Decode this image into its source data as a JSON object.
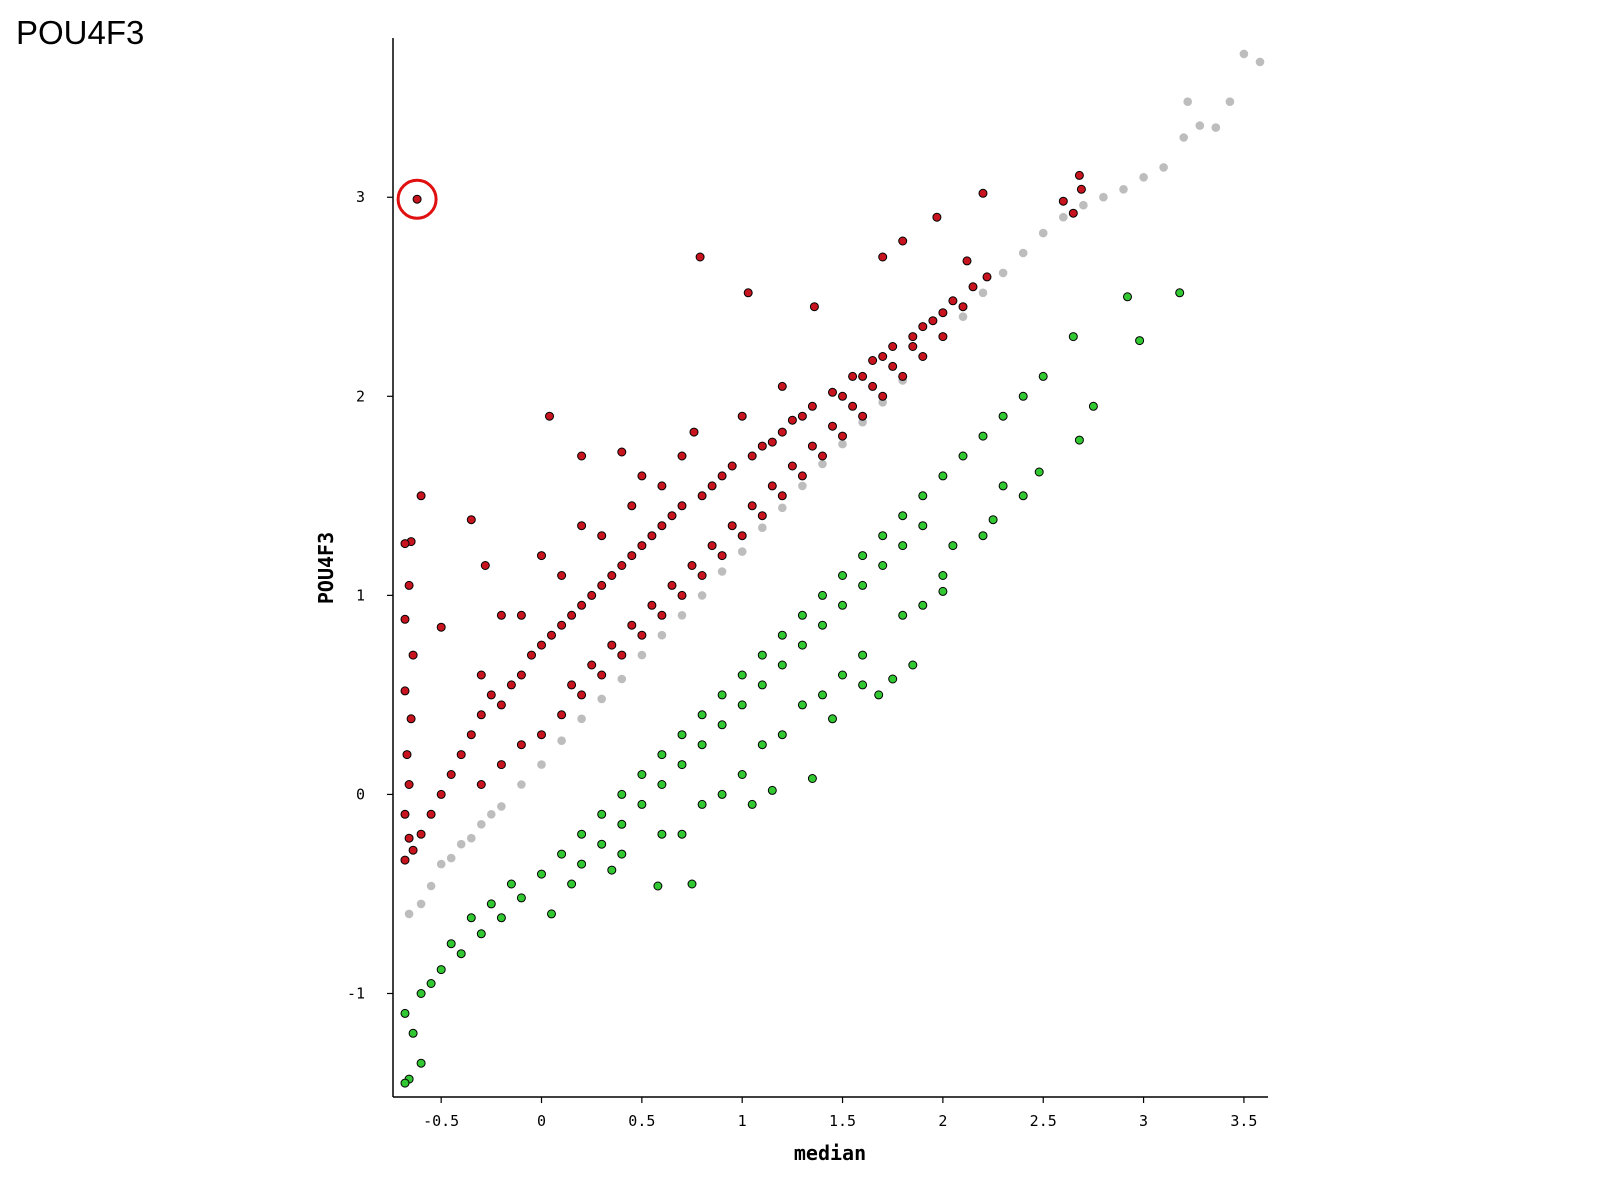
{
  "slide_title": "POU4F3",
  "chart_data": {
    "type": "scatter",
    "title": "",
    "xlabel": "median",
    "ylabel": "POU4F3",
    "xlim": [
      -0.74,
      3.62
    ],
    "ylim": [
      -1.52,
      3.8
    ],
    "xticks": [
      -0.5,
      0,
      0.5,
      1,
      1.5,
      2,
      2.5,
      3,
      3.5
    ],
    "xtick_labels": [
      "-0.5",
      "0",
      "0.5",
      "1",
      "1.5",
      "2",
      "2.5",
      "3",
      "3.5"
    ],
    "yticks": [
      -1,
      0,
      1,
      2,
      3
    ],
    "ytick_labels": [
      "-1",
      "0",
      "1",
      "2",
      "3"
    ],
    "grid": false,
    "series": [
      {
        "color": "#bdbdbd",
        "points": [
          [
            -0.66,
            -0.6
          ],
          [
            -0.6,
            -0.55
          ],
          [
            -0.55,
            -0.46
          ],
          [
            -0.5,
            -0.35
          ],
          [
            -0.45,
            -0.32
          ],
          [
            -0.4,
            -0.25
          ],
          [
            -0.35,
            -0.22
          ],
          [
            -0.3,
            -0.15
          ],
          [
            -0.25,
            -0.1
          ],
          [
            -0.2,
            -0.06
          ],
          [
            -0.1,
            0.05
          ],
          [
            0,
            0.15
          ],
          [
            0.1,
            0.27
          ],
          [
            0.2,
            0.38
          ],
          [
            0.3,
            0.48
          ],
          [
            0.4,
            0.58
          ],
          [
            0.5,
            0.7
          ],
          [
            0.6,
            0.8
          ],
          [
            0.7,
            0.9
          ],
          [
            0.8,
            1.0
          ],
          [
            0.9,
            1.12
          ],
          [
            1.0,
            1.22
          ],
          [
            1.1,
            1.34
          ],
          [
            1.2,
            1.44
          ],
          [
            1.3,
            1.55
          ],
          [
            1.4,
            1.66
          ],
          [
            1.5,
            1.76
          ],
          [
            1.6,
            1.87
          ],
          [
            1.7,
            1.97
          ],
          [
            1.8,
            2.08
          ],
          [
            1.9,
            2.2
          ],
          [
            2.0,
            2.3
          ],
          [
            2.1,
            2.4
          ],
          [
            2.2,
            2.52
          ],
          [
            2.3,
            2.62
          ],
          [
            2.4,
            2.72
          ],
          [
            2.5,
            2.82
          ],
          [
            2.6,
            2.9
          ],
          [
            2.7,
            2.96
          ],
          [
            2.8,
            3.0
          ],
          [
            2.9,
            3.04
          ],
          [
            3.0,
            3.1
          ],
          [
            3.1,
            3.15
          ],
          [
            3.2,
            3.3
          ],
          [
            3.28,
            3.36
          ],
          [
            3.36,
            3.35
          ],
          [
            3.5,
            3.72
          ],
          [
            3.58,
            3.68
          ],
          [
            3.22,
            3.48
          ],
          [
            3.43,
            3.48
          ]
        ]
      },
      {
        "color": "#c8141e",
        "points": [
          [
            -0.62,
            2.99
          ],
          [
            0.79,
            2.7
          ],
          [
            1.03,
            2.52
          ],
          [
            1.36,
            2.45
          ],
          [
            1.8,
            2.78
          ],
          [
            2.2,
            3.02
          ],
          [
            2.68,
            3.11
          ],
          [
            2.69,
            3.04
          ],
          [
            2.6,
            2.98
          ],
          [
            2.65,
            2.92
          ],
          [
            1.97,
            2.9
          ],
          [
            1.7,
            2.7
          ],
          [
            2.12,
            2.68
          ],
          [
            2.22,
            2.6
          ],
          [
            0.04,
            1.9
          ],
          [
            0.76,
            1.82
          ],
          [
            -0.6,
            1.5
          ],
          [
            -0.65,
            1.27
          ],
          [
            -0.35,
            1.38
          ],
          [
            -0.28,
            1.15
          ],
          [
            -0.5,
            0.84
          ],
          [
            -0.3,
            0.6
          ],
          [
            0.2,
            1.7
          ],
          [
            0.4,
            1.72
          ],
          [
            0.5,
            1.6
          ],
          [
            0.6,
            1.55
          ],
          [
            0.9,
            1.6
          ],
          [
            1.15,
            1.77
          ],
          [
            1.3,
            1.9
          ],
          [
            1.5,
            2.0
          ],
          [
            1.6,
            2.1
          ],
          [
            1.7,
            2.2
          ],
          [
            1.85,
            2.3
          ],
          [
            2.0,
            2.42
          ],
          [
            2.1,
            2.45
          ],
          [
            -0.68,
            1.26
          ],
          [
            -0.66,
            1.05
          ],
          [
            -0.68,
            0.88
          ],
          [
            -0.64,
            0.7
          ],
          [
            -0.68,
            0.52
          ],
          [
            -0.65,
            0.38
          ],
          [
            -0.67,
            0.2
          ],
          [
            -0.66,
            0.05
          ],
          [
            -0.68,
            -0.1
          ],
          [
            -0.66,
            -0.22
          ],
          [
            -0.68,
            -0.33
          ],
          [
            -0.64,
            -0.28
          ],
          [
            -0.6,
            -0.2
          ],
          [
            -0.55,
            -0.1
          ],
          [
            -0.5,
            0.0
          ],
          [
            -0.45,
            0.1
          ],
          [
            -0.4,
            0.2
          ],
          [
            -0.35,
            0.3
          ],
          [
            -0.3,
            0.4
          ],
          [
            -0.25,
            0.5
          ],
          [
            -0.2,
            0.45
          ],
          [
            -0.15,
            0.55
          ],
          [
            -0.1,
            0.6
          ],
          [
            -0.05,
            0.7
          ],
          [
            0.0,
            0.75
          ],
          [
            0.05,
            0.8
          ],
          [
            0.1,
            0.85
          ],
          [
            0.15,
            0.9
          ],
          [
            0.2,
            0.95
          ],
          [
            0.25,
            1.0
          ],
          [
            0.3,
            1.05
          ],
          [
            0.35,
            1.1
          ],
          [
            0.4,
            1.15
          ],
          [
            0.45,
            1.2
          ],
          [
            0.5,
            1.25
          ],
          [
            0.55,
            1.3
          ],
          [
            0.6,
            1.35
          ],
          [
            0.65,
            1.4
          ],
          [
            0.7,
            1.45
          ],
          [
            0.8,
            1.5
          ],
          [
            0.85,
            1.55
          ],
          [
            0.95,
            1.65
          ],
          [
            1.05,
            1.7
          ],
          [
            1.1,
            1.75
          ],
          [
            1.2,
            1.82
          ],
          [
            1.25,
            1.88
          ],
          [
            1.35,
            1.95
          ],
          [
            1.45,
            2.02
          ],
          [
            1.55,
            2.1
          ],
          [
            1.65,
            2.18
          ],
          [
            1.75,
            2.25
          ],
          [
            1.9,
            2.35
          ],
          [
            2.05,
            2.48
          ],
          [
            2.15,
            2.55
          ],
          [
            0.0,
            0.3
          ],
          [
            0.1,
            0.4
          ],
          [
            0.2,
            0.5
          ],
          [
            0.3,
            0.6
          ],
          [
            0.4,
            0.7
          ],
          [
            0.5,
            0.8
          ],
          [
            0.6,
            0.9
          ],
          [
            0.7,
            1.0
          ],
          [
            0.8,
            1.1
          ],
          [
            0.9,
            1.2
          ],
          [
            1.0,
            1.3
          ],
          [
            1.1,
            1.4
          ],
          [
            1.2,
            1.5
          ],
          [
            1.3,
            1.6
          ],
          [
            1.4,
            1.7
          ],
          [
            1.5,
            1.8
          ],
          [
            1.6,
            1.9
          ],
          [
            1.7,
            2.0
          ],
          [
            1.8,
            2.1
          ],
          [
            1.9,
            2.2
          ],
          [
            2.0,
            2.3
          ],
          [
            -0.2,
            0.15
          ],
          [
            -0.3,
            0.05
          ],
          [
            -0.1,
            0.25
          ],
          [
            0.15,
            0.55
          ],
          [
            0.25,
            0.65
          ],
          [
            0.35,
            0.75
          ],
          [
            0.45,
            0.85
          ],
          [
            0.55,
            0.95
          ],
          [
            0.65,
            1.05
          ],
          [
            0.75,
            1.15
          ],
          [
            0.85,
            1.25
          ],
          [
            0.95,
            1.35
          ],
          [
            1.05,
            1.45
          ],
          [
            1.15,
            1.55
          ],
          [
            1.25,
            1.65
          ],
          [
            1.35,
            1.75
          ],
          [
            1.45,
            1.85
          ],
          [
            1.55,
            1.95
          ],
          [
            1.65,
            2.05
          ],
          [
            1.75,
            2.15
          ],
          [
            1.85,
            2.25
          ],
          [
            1.95,
            2.38
          ],
          [
            -0.1,
            0.9
          ],
          [
            0.0,
            1.2
          ],
          [
            0.1,
            1.1
          ],
          [
            0.3,
            1.3
          ],
          [
            -0.2,
            0.9
          ],
          [
            0.2,
            1.35
          ],
          [
            0.45,
            1.45
          ],
          [
            0.7,
            1.7
          ],
          [
            1.0,
            1.9
          ],
          [
            1.2,
            2.05
          ]
        ]
      },
      {
        "color": "#32c832",
        "points": [
          [
            3.18,
            2.52
          ],
          [
            2.98,
            2.28
          ],
          [
            2.92,
            2.5
          ],
          [
            2.65,
            2.3
          ],
          [
            2.75,
            1.95
          ],
          [
            2.68,
            1.78
          ],
          [
            2.48,
            1.62
          ],
          [
            2.3,
            1.55
          ],
          [
            2.0,
            1.02
          ],
          [
            1.85,
            0.65
          ],
          [
            1.75,
            0.58
          ],
          [
            1.35,
            0.08
          ],
          [
            1.15,
            0.02
          ],
          [
            1.05,
            -0.05
          ],
          [
            0.75,
            -0.45
          ],
          [
            0.58,
            -0.46
          ],
          [
            0.05,
            -0.6
          ],
          [
            -0.66,
            -1.43
          ],
          [
            -0.68,
            -1.45
          ],
          [
            -0.6,
            -1.35
          ],
          [
            -0.64,
            -1.2
          ],
          [
            -0.68,
            -1.1
          ],
          [
            -0.6,
            -1.0
          ],
          [
            -0.55,
            -0.95
          ],
          [
            -0.5,
            -0.88
          ],
          [
            -0.4,
            -0.8
          ],
          [
            -0.3,
            -0.7
          ],
          [
            -0.2,
            -0.62
          ],
          [
            -0.1,
            -0.52
          ],
          [
            0.0,
            -0.4
          ],
          [
            0.1,
            -0.3
          ],
          [
            0.2,
            -0.2
          ],
          [
            0.3,
            -0.1
          ],
          [
            0.4,
            0.0
          ],
          [
            0.5,
            0.1
          ],
          [
            0.6,
            0.2
          ],
          [
            0.7,
            0.3
          ],
          [
            0.8,
            0.4
          ],
          [
            0.9,
            0.5
          ],
          [
            1.0,
            0.6
          ],
          [
            1.1,
            0.7
          ],
          [
            1.2,
            0.8
          ],
          [
            1.3,
            0.9
          ],
          [
            1.4,
            1.0
          ],
          [
            1.5,
            1.1
          ],
          [
            1.6,
            1.2
          ],
          [
            1.7,
            1.3
          ],
          [
            1.8,
            1.4
          ],
          [
            1.9,
            1.5
          ],
          [
            2.0,
            1.6
          ],
          [
            2.1,
            1.7
          ],
          [
            2.2,
            1.8
          ],
          [
            2.3,
            1.9
          ],
          [
            2.4,
            2.0
          ],
          [
            2.5,
            2.1
          ],
          [
            0.2,
            -0.35
          ],
          [
            0.3,
            -0.25
          ],
          [
            0.4,
            -0.15
          ],
          [
            0.5,
            -0.05
          ],
          [
            0.6,
            0.05
          ],
          [
            0.7,
            0.15
          ],
          [
            0.8,
            0.25
          ],
          [
            0.9,
            0.35
          ],
          [
            1.0,
            0.45
          ],
          [
            1.1,
            0.55
          ],
          [
            1.2,
            0.65
          ],
          [
            1.3,
            0.75
          ],
          [
            1.4,
            0.85
          ],
          [
            1.5,
            0.95
          ],
          [
            1.6,
            1.05
          ],
          [
            1.7,
            1.15
          ],
          [
            1.8,
            1.25
          ],
          [
            1.9,
            1.35
          ],
          [
            0.4,
            -0.3
          ],
          [
            0.6,
            -0.2
          ],
          [
            0.8,
            -0.05
          ],
          [
            1.0,
            0.1
          ],
          [
            1.2,
            0.3
          ],
          [
            1.4,
            0.5
          ],
          [
            1.6,
            0.7
          ],
          [
            1.8,
            0.9
          ],
          [
            2.0,
            1.1
          ],
          [
            2.2,
            1.3
          ],
          [
            2.4,
            1.5
          ],
          [
            1.45,
            0.38
          ],
          [
            1.6,
            0.55
          ],
          [
            1.68,
            0.5
          ],
          [
            1.9,
            0.95
          ],
          [
            2.05,
            1.25
          ],
          [
            2.25,
            1.38
          ],
          [
            0.7,
            -0.2
          ],
          [
            0.9,
            0.0
          ],
          [
            1.1,
            0.25
          ],
          [
            1.3,
            0.45
          ],
          [
            1.5,
            0.6
          ],
          [
            0.15,
            -0.45
          ],
          [
            0.35,
            -0.38
          ],
          [
            -0.45,
            -0.75
          ],
          [
            -0.35,
            -0.62
          ],
          [
            -0.25,
            -0.55
          ],
          [
            -0.15,
            -0.45
          ]
        ]
      }
    ],
    "annotations": [
      {
        "type": "circle",
        "x": -0.62,
        "y": 2.99,
        "color": "#e01010"
      }
    ]
  }
}
